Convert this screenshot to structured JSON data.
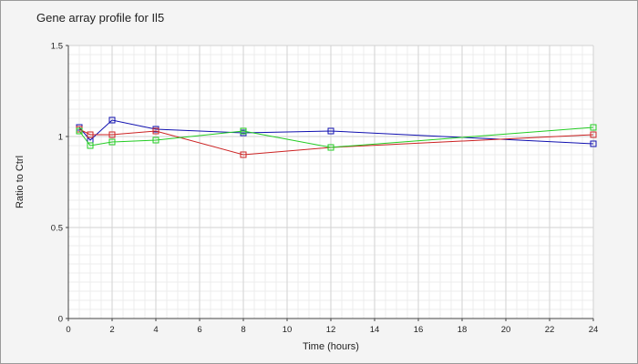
{
  "chart_data": {
    "type": "line",
    "title": "Gene array profile for Il5",
    "xlabel": "Time (hours)",
    "ylabel": "Ratio to Ctrl",
    "xlim": [
      0,
      24
    ],
    "ylim": [
      0,
      1.5
    ],
    "xticks": [
      0,
      2,
      4,
      6,
      8,
      10,
      12,
      14,
      16,
      18,
      20,
      22,
      24
    ],
    "xtick_labels": [
      "0",
      "2",
      "4",
      "6",
      "8",
      "10",
      "12",
      "14",
      "16",
      "18",
      "20",
      "22",
      "24"
    ],
    "yticks": [
      0,
      0.5,
      1,
      1.5
    ],
    "ytick_labels": [
      "0",
      "0.5",
      "1",
      "1.5"
    ],
    "grid": true,
    "marker": "square",
    "x": [
      0.5,
      1,
      2,
      4,
      8,
      12,
      24
    ],
    "series": [
      {
        "color": "#1010b0",
        "values": [
          1.05,
          0.98,
          1.09,
          1.04,
          1.02,
          1.03,
          0.96
        ]
      },
      {
        "color": "#cc2222",
        "values": [
          1.04,
          1.01,
          1.01,
          1.03,
          0.9,
          0.94,
          1.01
        ]
      },
      {
        "color": "#22cc22",
        "values": [
          1.03,
          0.95,
          0.97,
          0.98,
          1.03,
          0.94,
          1.05
        ]
      }
    ]
  }
}
